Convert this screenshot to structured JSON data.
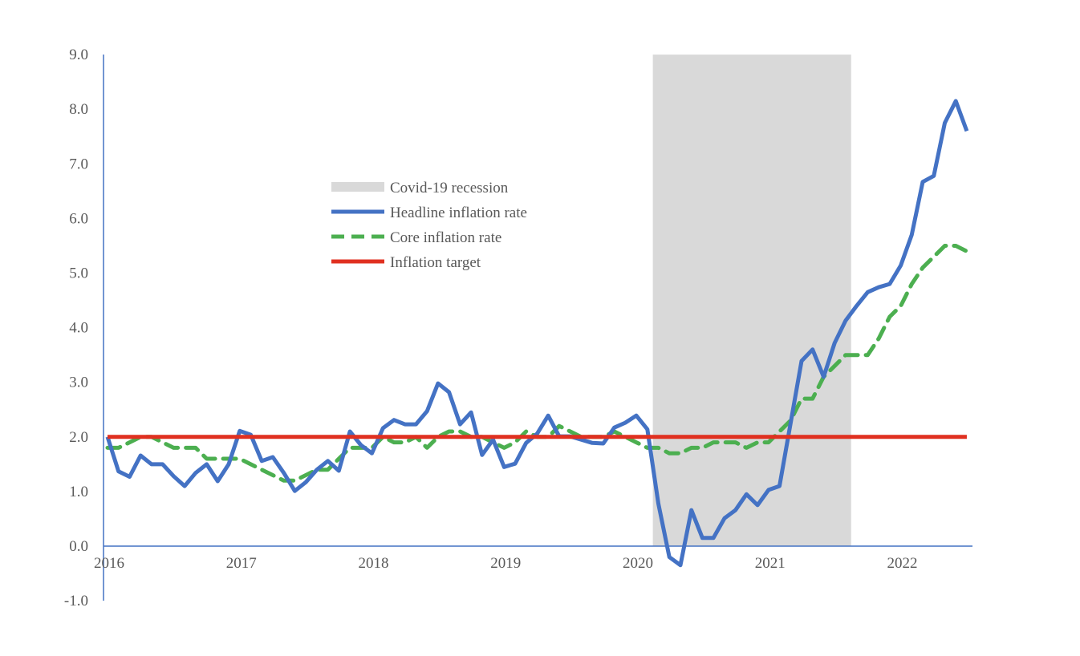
{
  "chart_data": {
    "type": "line",
    "title": "",
    "xlabel": "",
    "ylabel": "",
    "ylim": [
      -1.0,
      9.0
    ],
    "yticks": [
      "-1.0",
      "0.0",
      "1.0",
      "2.0",
      "3.0",
      "4.0",
      "5.0",
      "6.0",
      "7.0",
      "8.0",
      "9.0"
    ],
    "xticks": [
      "2016",
      "2017",
      "2018",
      "2019",
      "2020",
      "2021",
      "2022"
    ],
    "x_start": "2016-01",
    "x_frequency": "monthly",
    "grid": false,
    "legend_position": "upper-center",
    "shaded_region": {
      "name": "Covid-19 recession",
      "start": "2020-02",
      "end": "2021-08",
      "color": "#D9D9D9"
    },
    "series": [
      {
        "name": "Headline inflation rate",
        "color": "#4472C4",
        "style": "solid",
        "values": [
          2.0,
          1.37,
          1.27,
          1.66,
          1.5,
          1.5,
          1.28,
          1.1,
          1.34,
          1.5,
          1.19,
          1.5,
          2.11,
          2.04,
          1.56,
          1.63,
          1.34,
          1.01,
          1.17,
          1.4,
          1.56,
          1.38,
          2.1,
          1.85,
          1.7,
          2.16,
          2.31,
          2.23,
          2.23,
          2.47,
          2.98,
          2.82,
          2.23,
          2.45,
          1.67,
          1.95,
          1.45,
          1.51,
          1.89,
          2.06,
          2.39,
          2.01,
          2.01,
          1.95,
          1.89,
          1.88,
          2.17,
          2.26,
          2.39,
          2.14,
          0.78,
          -0.2,
          -0.35,
          0.66,
          0.15,
          0.15,
          0.51,
          0.66,
          0.95,
          0.75,
          1.03,
          1.1,
          2.25,
          3.39,
          3.6,
          3.1,
          3.72,
          4.13,
          4.4,
          4.65,
          4.74,
          4.8,
          5.14,
          5.7,
          6.67,
          6.78,
          7.75,
          8.15,
          7.6
        ]
      },
      {
        "name": "Core inflation rate",
        "color": "#4CAF50",
        "style": "dashed",
        "values": [
          1.8,
          1.8,
          1.9,
          2.0,
          2.0,
          1.9,
          1.8,
          1.8,
          1.8,
          1.6,
          1.6,
          1.6,
          1.6,
          1.5,
          1.4,
          1.3,
          1.2,
          1.2,
          1.3,
          1.4,
          1.4,
          1.6,
          1.8,
          1.8,
          1.8,
          2.0,
          1.9,
          1.9,
          2.0,
          1.8,
          2.0,
          2.1,
          2.1,
          2.0,
          2.0,
          1.9,
          1.8,
          1.9,
          2.1,
          2.0,
          2.0,
          2.2,
          2.1,
          2.0,
          2.0,
          2.0,
          2.1,
          2.0,
          1.9,
          1.8,
          1.8,
          1.7,
          1.7,
          1.8,
          1.8,
          1.9,
          1.9,
          1.9,
          1.8,
          1.9,
          1.9,
          2.1,
          2.3,
          2.7,
          2.7,
          3.1,
          3.3,
          3.5,
          3.5,
          3.5,
          3.8,
          4.2,
          4.4,
          4.8,
          5.1,
          5.3,
          5.5,
          5.5,
          5.4
        ]
      },
      {
        "name": "Inflation target",
        "color": "#E03020",
        "style": "solid",
        "constant": 2.0
      }
    ]
  }
}
